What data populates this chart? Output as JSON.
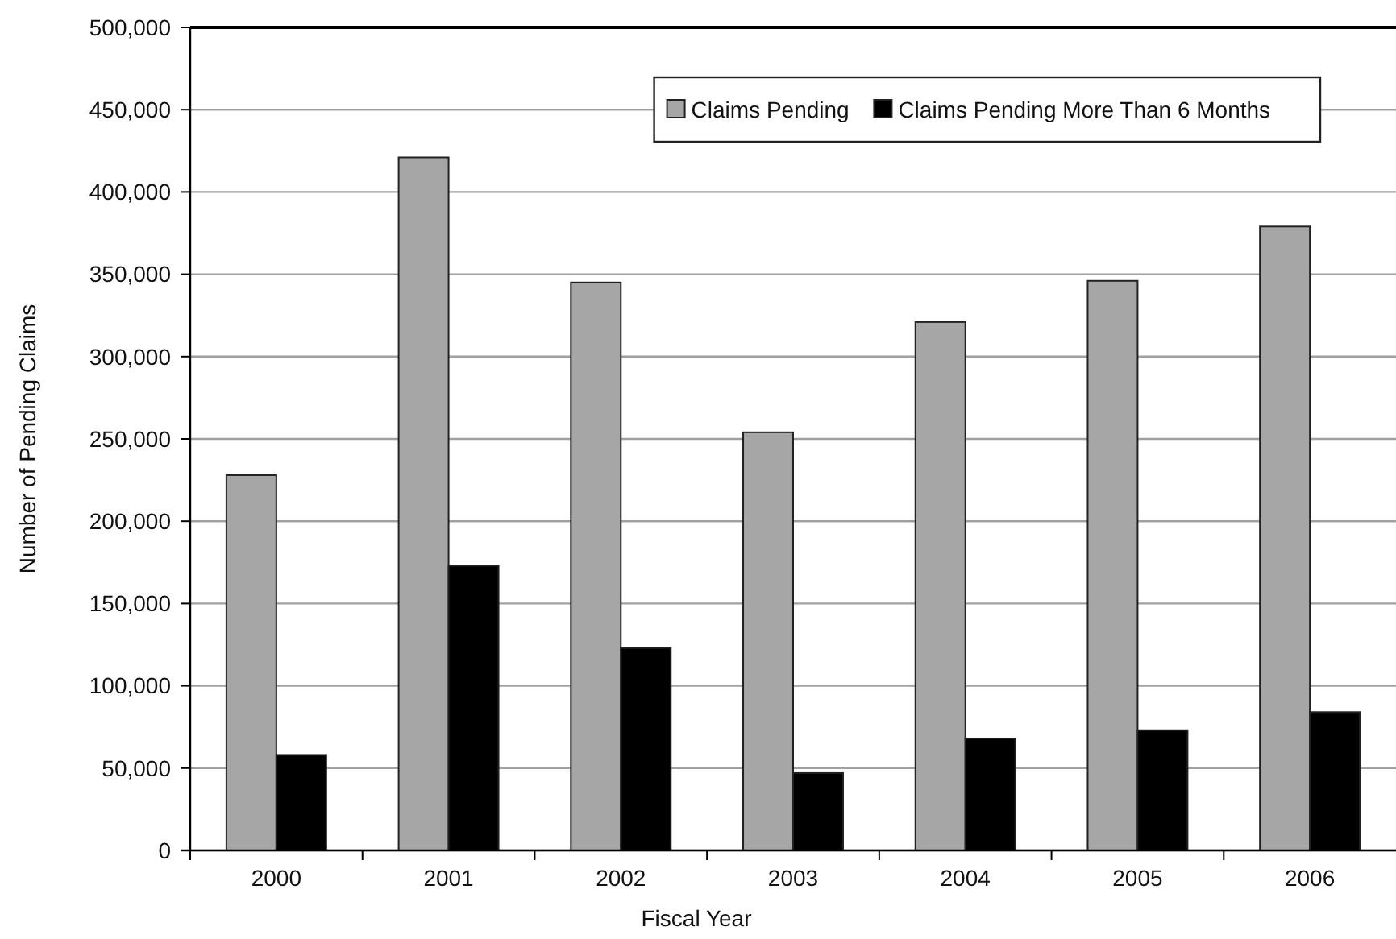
{
  "chart_data": {
    "type": "bar",
    "xlabel": "Fiscal Year",
    "ylabel": "Number of Pending Claims",
    "categories": [
      "2000",
      "2001",
      "2002",
      "2003",
      "2004",
      "2005",
      "2006"
    ],
    "series": [
      {
        "name": "Claims Pending",
        "color": "#a6a6a6",
        "values": [
          228000,
          421000,
          345000,
          254000,
          321000,
          346000,
          379000
        ]
      },
      {
        "name": "Claims Pending More Than 6 Months",
        "color": "#000000",
        "values": [
          58000,
          173000,
          123000,
          47000,
          68000,
          73000,
          84000
        ]
      }
    ],
    "ylim": [
      0,
      500000
    ],
    "yticks": [
      {
        "value": 0,
        "label": "0"
      },
      {
        "value": 50000,
        "label": "50,000"
      },
      {
        "value": 100000,
        "label": "100,000"
      },
      {
        "value": 150000,
        "label": "150,000"
      },
      {
        "value": 200000,
        "label": "200,000"
      },
      {
        "value": 250000,
        "label": "250,000"
      },
      {
        "value": 300000,
        "label": "300,000"
      },
      {
        "value": 350000,
        "label": "350,000"
      },
      {
        "value": 400000,
        "label": "400,000"
      },
      {
        "value": 450000,
        "label": "450,000"
      },
      {
        "value": 500000,
        "label": "500,000"
      }
    ],
    "grid": "y",
    "legend": "top right"
  }
}
